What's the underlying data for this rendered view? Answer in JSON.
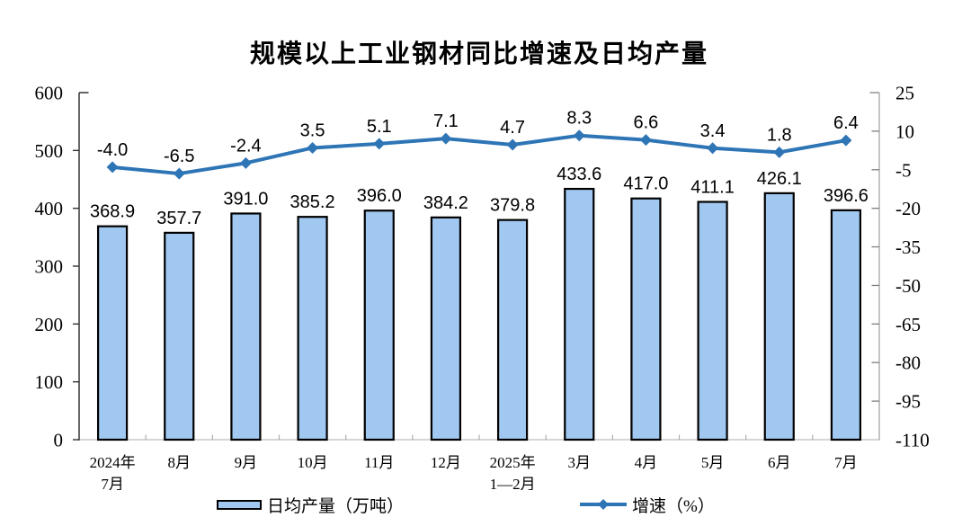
{
  "chart_data": {
    "type": "bar+line",
    "title": "规模以上工业钢材同比增速及日均产量",
    "categories": [
      "2024年\n7月",
      "8月",
      "9月",
      "10月",
      "11月",
      "12月",
      "2025年\n1—2月",
      "3月",
      "4月",
      "5月",
      "6月",
      "7月"
    ],
    "series": [
      {
        "name": "日均产量（万吨）",
        "type": "bar",
        "axis": "left",
        "values": [
          368.9,
          357.7,
          391.0,
          385.2,
          396.0,
          384.2,
          379.8,
          433.6,
          417.0,
          411.1,
          426.1,
          396.6
        ],
        "fill": "#A0C8F0",
        "stroke": "#000000"
      },
      {
        "name": "增速（%）",
        "type": "line",
        "axis": "right",
        "values": [
          -4.0,
          -6.5,
          -2.4,
          3.5,
          5.1,
          7.1,
          4.7,
          8.3,
          6.6,
          3.4,
          1.8,
          6.4
        ],
        "color": "#2E75B6",
        "marker": "diamond"
      }
    ],
    "left_axis": {
      "min": 0,
      "max": 600,
      "ticks": [
        600,
        500,
        400,
        300,
        200,
        100,
        0
      ]
    },
    "right_axis": {
      "min": -110,
      "max": 25,
      "ticks": [
        25,
        10,
        -5,
        -20,
        -35,
        -50,
        -65,
        -80,
        -95,
        -110
      ]
    },
    "grid": false,
    "legend_position": "bottom"
  },
  "colors": {
    "bar_fill": "#A0C8F0",
    "bar_border": "#000000",
    "line": "#2E75B6",
    "left_axis": "#333333",
    "right_axis": "#ABABAB",
    "bottom_axis": "#C8C8C8"
  }
}
